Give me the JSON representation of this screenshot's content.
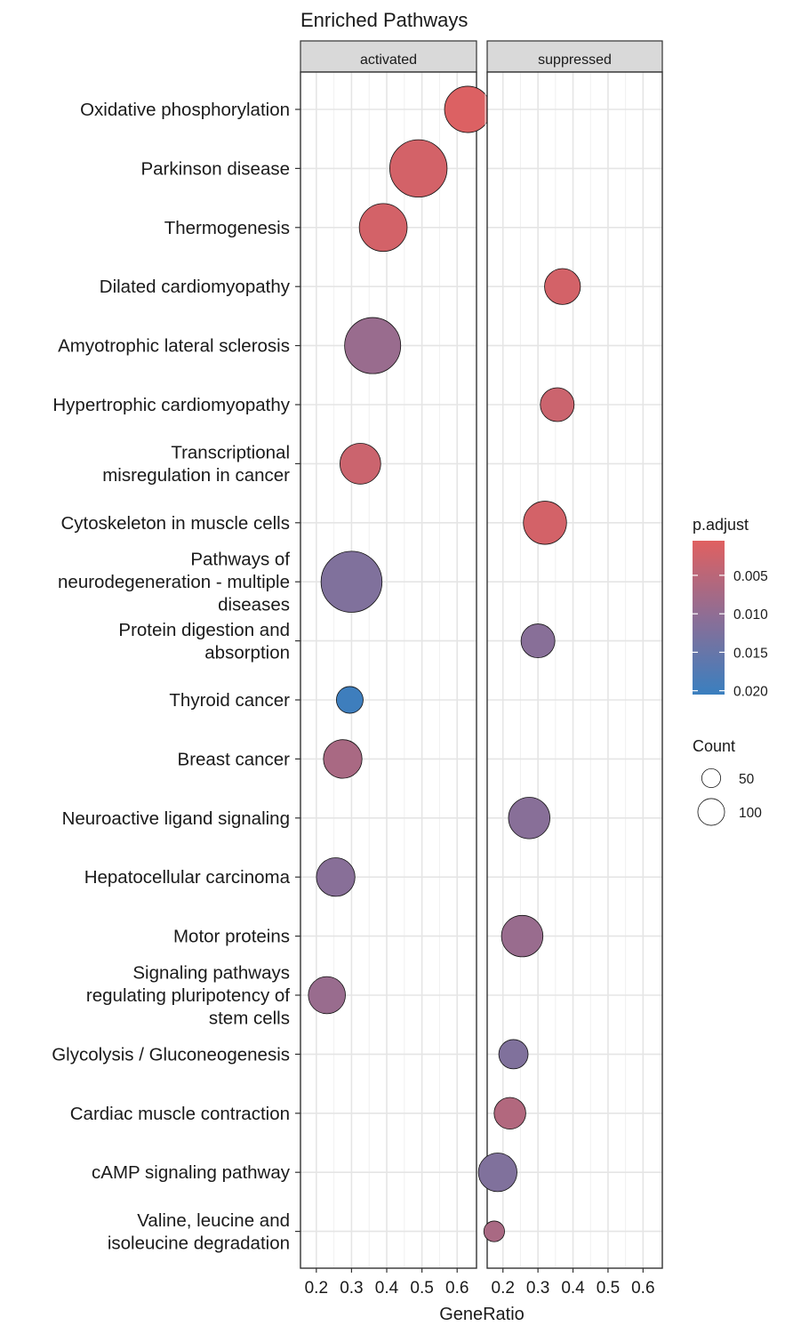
{
  "chart_data": {
    "type": "scatter",
    "title": "Enriched Pathways",
    "xlabel": "GeneRatio",
    "ylabel": "",
    "xlim": [
      0.155,
      0.655
    ],
    "xticks": [
      "0.2",
      "0.3",
      "0.4",
      "0.5",
      "0.6"
    ],
    "xtick_values": [
      0.2,
      0.3,
      0.4,
      0.5,
      0.6
    ],
    "grid": true,
    "facets": [
      "activated",
      "suppressed"
    ],
    "categories": [
      "Oxidative phosphorylation",
      "Parkinson disease",
      "Thermogenesis",
      "Dilated cardiomyopathy",
      "Amyotrophic lateral sclerosis",
      "Hypertrophic cardiomyopathy",
      "Transcriptional\nmisregulation in cancer",
      "Cytoskeleton in muscle cells",
      "Pathways of\nneurodegeneration - multiple\ndiseases",
      "Protein digestion and\nabsorption",
      "Thyroid cancer",
      "Breast cancer",
      "Neuroactive ligand signaling",
      "Hepatocellular carcinoma",
      "Motor proteins",
      "Signaling pathways\nregulating pluripotency of\nstem cells",
      "Glycolysis / Gluconeogenesis",
      "Cardiac muscle contraction",
      "cAMP signaling pathway",
      "Valine, leucine and\nisoleucine degradation"
    ],
    "series": [
      {
        "facet": "activated",
        "points": [
          {
            "category": "Oxidative phosphorylation",
            "x": 0.63,
            "count": 75,
            "p_adjust": 0.001
          },
          {
            "category": "Parkinson disease",
            "x": 0.49,
            "count": 115,
            "p_adjust": 0.002
          },
          {
            "category": "Thermogenesis",
            "x": 0.39,
            "count": 80,
            "p_adjust": 0.002
          },
          {
            "category": "Amyotrophic lateral sclerosis",
            "x": 0.36,
            "count": 110,
            "p_adjust": 0.009
          },
          {
            "category": "Transcriptional\nmisregulation in cancer",
            "x": 0.325,
            "count": 58,
            "p_adjust": 0.003
          },
          {
            "category": "Pathways of\nneurodegeneration - multiple\ndiseases",
            "x": 0.3,
            "count": 130,
            "p_adjust": 0.012
          },
          {
            "category": "Thyroid cancer",
            "x": 0.295,
            "count": 25,
            "p_adjust": 0.02
          },
          {
            "category": "Breast cancer",
            "x": 0.275,
            "count": 52,
            "p_adjust": 0.007
          },
          {
            "category": "Hepatocellular carcinoma",
            "x": 0.255,
            "count": 52,
            "p_adjust": 0.011
          },
          {
            "category": "Signaling pathways\nregulating pluripotency of\nstem cells",
            "x": 0.23,
            "count": 48,
            "p_adjust": 0.009
          }
        ]
      },
      {
        "facet": "suppressed",
        "points": [
          {
            "category": "Dilated cardiomyopathy",
            "x": 0.37,
            "count": 45,
            "p_adjust": 0.002
          },
          {
            "category": "Hypertrophic cardiomyopathy",
            "x": 0.355,
            "count": 40,
            "p_adjust": 0.003
          },
          {
            "category": "Cytoskeleton in muscle cells",
            "x": 0.32,
            "count": 65,
            "p_adjust": 0.002
          },
          {
            "category": "Protein digestion and\nabsorption",
            "x": 0.3,
            "count": 40,
            "p_adjust": 0.011
          },
          {
            "category": "Neuroactive ligand signaling",
            "x": 0.275,
            "count": 60,
            "p_adjust": 0.011
          },
          {
            "category": "Motor proteins",
            "x": 0.255,
            "count": 60,
            "p_adjust": 0.009
          },
          {
            "category": "Glycolysis / Gluconeogenesis",
            "x": 0.23,
            "count": 30,
            "p_adjust": 0.012
          },
          {
            "category": "Cardiac muscle contraction",
            "x": 0.22,
            "count": 35,
            "p_adjust": 0.006
          },
          {
            "category": "cAMP signaling pathway",
            "x": 0.185,
            "count": 52,
            "p_adjust": 0.012
          },
          {
            "category": "Valine, leucine and\nisoleucine degradation",
            "x": 0.175,
            "count": 15,
            "p_adjust": 0.007
          }
        ]
      }
    ],
    "color_legend": {
      "title": "p.adjust",
      "labels": [
        "0.005",
        "0.010",
        "0.015",
        "0.020"
      ],
      "values": [
        0.005,
        0.01,
        0.015,
        0.02
      ],
      "min": 0.0005,
      "max": 0.0205,
      "low_color": "#e06060",
      "high_color": "#3a7fbf"
    },
    "size_legend": {
      "title": "Count",
      "labels": [
        "50",
        "100"
      ],
      "values": [
        50,
        100
      ]
    }
  }
}
